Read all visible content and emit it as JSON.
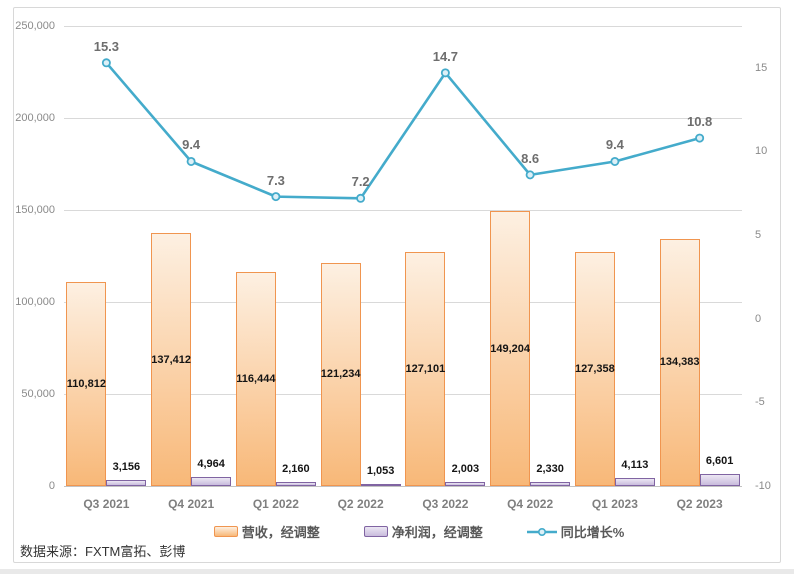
{
  "chart_data": {
    "type": "combo",
    "categories": [
      "Q3 2021",
      "Q4 2021",
      "Q1 2022",
      "Q2 2022",
      "Q3 2022",
      "Q4 2022",
      "Q1 2023",
      "Q2 2023"
    ],
    "series": [
      {
        "name": "营收，经调整",
        "type": "bar",
        "axis": "left",
        "values": [
          110812,
          137412,
          116444,
          121234,
          127101,
          149204,
          127358,
          134383
        ],
        "value_labels": [
          "110,812",
          "137,412",
          "116,444",
          "121,234",
          "127,101",
          "149,204",
          "127,358",
          "134,383"
        ],
        "fill_top": "#fdf0e2",
        "fill_bottom": "#f8b878",
        "border": "#f0954f"
      },
      {
        "name": "净利润，经调整",
        "type": "bar",
        "axis": "left",
        "values": [
          3156,
          4964,
          2160,
          1053,
          2003,
          2330,
          4113,
          6601
        ],
        "value_labels": [
          "3,156",
          "4,964",
          "2,160",
          "1,053",
          "2,003",
          "2,330",
          "4,113",
          "6,601"
        ],
        "fill_top": "#ece7f3",
        "fill_bottom": "#c9bcdd",
        "border": "#8064a2"
      },
      {
        "name": "同比增长%",
        "type": "line",
        "axis": "right",
        "values": [
          15.3,
          9.4,
          7.3,
          7.2,
          14.7,
          8.6,
          9.4,
          10.8
        ],
        "value_labels": [
          "15.3",
          "9.4",
          "7.3",
          "7.2",
          "14.7",
          "8.6",
          "9.4",
          "10.8"
        ],
        "color": "#44abcb",
        "marker_fill": "#ddf0f7"
      }
    ],
    "left_axis": {
      "min": 0,
      "max": 250000,
      "step": 50000,
      "ticks": [
        {
          "value": 0,
          "label": "0"
        },
        {
          "value": 50000,
          "label": "50,000"
        },
        {
          "value": 100000,
          "label": "100,000"
        },
        {
          "value": 150000,
          "label": "150,000"
        },
        {
          "value": 200000,
          "label": "200,000"
        },
        {
          "value": 250000,
          "label": "250,000"
        }
      ]
    },
    "right_axis": {
      "min": -10,
      "max": 17.5,
      "step": 5,
      "ticks": [
        {
          "value": -10,
          "label": "-10"
        },
        {
          "value": -5,
          "label": "-5"
        },
        {
          "value": 0,
          "label": "0"
        },
        {
          "value": 5,
          "label": "5"
        },
        {
          "value": 10,
          "label": "10"
        },
        {
          "value": 15,
          "label": "15"
        }
      ]
    },
    "grid": true,
    "legend_position": "bottom",
    "title": ""
  },
  "footer": {
    "source_label": "数据来源：FXTM富拓、彭博"
  },
  "colors": {
    "grid": "#d9d9d9",
    "frame_border": "#d8d8d8",
    "axis_text": "#8a8a8a",
    "category_text": "#7f7f7f",
    "line_accent": "#44abcb",
    "bar_accent_orange": "#f0954f",
    "bar_accent_purple": "#8064a2"
  }
}
